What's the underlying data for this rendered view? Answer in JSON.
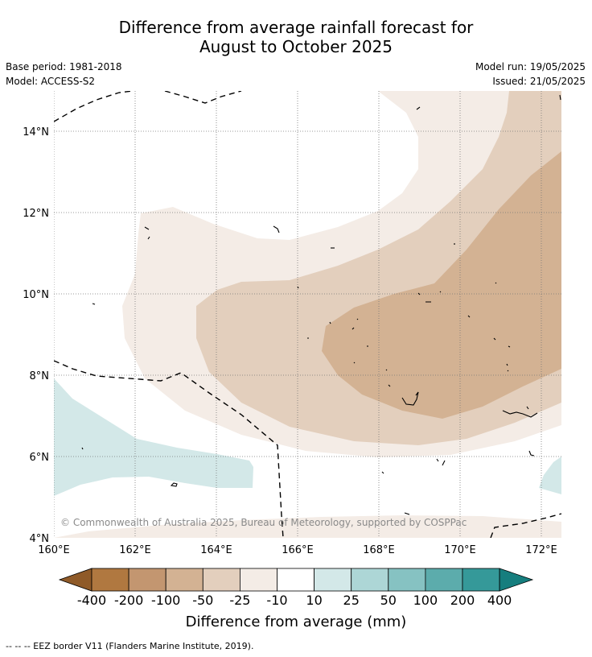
{
  "header": {
    "title_line1": "Difference from average rainfall forecast for",
    "title_line2": "August to October 2025",
    "base_period": "Base period: 1981-2018",
    "model": "Model: ACCESS-S2",
    "model_run": "Model run: 19/05/2025",
    "issued": "Issued: 21/05/2025"
  },
  "map": {
    "lat_labels": [
      "14°N",
      "12°N",
      "10°N",
      "8°N",
      "6°N",
      "4°N"
    ],
    "lon_labels": [
      "160°E",
      "162°E",
      "164°E",
      "166°E",
      "168°E",
      "170°E",
      "172°E"
    ],
    "copyright": "© Commonwealth of Australia 2025, Bureau of Meteorology, supported by COSPPac"
  },
  "colorbar": {
    "labels": [
      "-400",
      "-200",
      "-100",
      "-50",
      "-25",
      "-10",
      "10",
      "25",
      "50",
      "100",
      "200",
      "400"
    ],
    "colors": [
      "#8f5a28",
      "#b07840",
      "#c39670",
      "#d3b293",
      "#e3cfbd",
      "#f4ece6",
      "#ffffff",
      "#d3e8e8",
      "#add6d6",
      "#86c2c2",
      "#5cacac",
      "#359999",
      "#167e7e"
    ],
    "title": "Difference from average (mm)"
  },
  "footnote": "--  --  -- EEZ border V11 (Flanders Marine Institute, 2019).",
  "chart_data": {
    "type": "heatmap",
    "title": "Difference from average rainfall forecast for August to October 2025",
    "xlabel": "",
    "ylabel": "",
    "xlim": [
      160,
      172.5
    ],
    "ylim": [
      4,
      15
    ],
    "x_ticks": [
      160,
      162,
      164,
      166,
      168,
      170,
      172
    ],
    "y_ticks": [
      4,
      6,
      8,
      10,
      12,
      14
    ],
    "levels_mm": [
      -400,
      -200,
      -100,
      -50,
      -25,
      -10,
      10,
      25,
      50,
      100,
      200,
      400
    ],
    "grid": true
  }
}
